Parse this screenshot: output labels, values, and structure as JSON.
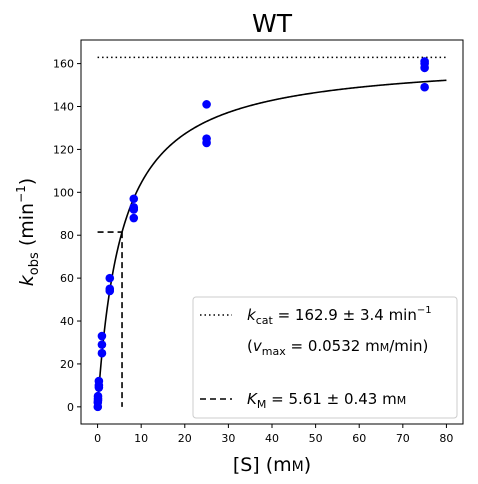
{
  "chart_data": {
    "type": "scatter",
    "title": "WT",
    "xlabel": "[S] (mM)",
    "ylabel": "k_obs (min^-1)",
    "xlim": [
      -3.8,
      83.8
    ],
    "ylim": [
      -8.0,
      171.0
    ],
    "xticks": [
      0,
      10,
      20,
      30,
      40,
      50,
      60,
      70,
      80
    ],
    "yticks": [
      0,
      20,
      40,
      60,
      80,
      100,
      120,
      140,
      160
    ],
    "grid": false,
    "legend_position": "lower right",
    "colors": {
      "points": "#0000ff",
      "lines": "#000000"
    },
    "points": [
      {
        "x": 0.05,
        "y": 0
      },
      {
        "x": 0.05,
        "y": 2
      },
      {
        "x": 0.1,
        "y": 3
      },
      {
        "x": 0.1,
        "y": 4
      },
      {
        "x": 0.1,
        "y": 5
      },
      {
        "x": 0.3,
        "y": 9
      },
      {
        "x": 0.3,
        "y": 10
      },
      {
        "x": 0.3,
        "y": 12
      },
      {
        "x": 1.0,
        "y": 25
      },
      {
        "x": 1.0,
        "y": 29
      },
      {
        "x": 1.0,
        "y": 33
      },
      {
        "x": 2.8,
        "y": 54
      },
      {
        "x": 2.8,
        "y": 55
      },
      {
        "x": 2.8,
        "y": 60
      },
      {
        "x": 8.3,
        "y": 88
      },
      {
        "x": 8.3,
        "y": 92
      },
      {
        "x": 8.3,
        "y": 93
      },
      {
        "x": 8.3,
        "y": 97
      },
      {
        "x": 25,
        "y": 123
      },
      {
        "x": 25,
        "y": 125
      },
      {
        "x": 25,
        "y": 141
      },
      {
        "x": 75,
        "y": 149
      },
      {
        "x": 75,
        "y": 158
      },
      {
        "x": 75,
        "y": 160
      },
      {
        "x": 75,
        "y": 161
      }
    ],
    "fit": {
      "kcat": 162.9,
      "KM": 5.61,
      "x_range": [
        0,
        80
      ]
    },
    "kcat_line": {
      "y": 162.9,
      "x_range": [
        0,
        80
      ]
    },
    "km_marker": {
      "x": 5.61,
      "y": 81.45
    },
    "legend": {
      "kcat": "k_cat = 162.9 ± 3.4 min^-1",
      "vmax": "(v_max = 0.0532 mM/min)",
      "km": "K_M = 5.61 ± 0.43 mM"
    }
  }
}
